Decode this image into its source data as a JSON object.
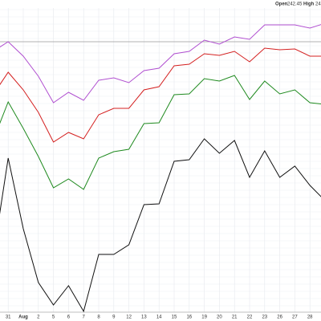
{
  "header": {
    "open_label": "Open",
    "open_value": "242.45",
    "high_label": "High",
    "high_value": "24"
  },
  "chart_data": {
    "type": "line",
    "categories": [
      null,
      "31",
      "Aug",
      "2",
      "5",
      "6",
      "7",
      "8",
      "9",
      "12",
      "13",
      "14",
      "15",
      "16",
      "19",
      "20",
      "21",
      "22",
      "23",
      "26",
      "27",
      "28",
      "29"
    ],
    "ylim": [
      0,
      400
    ],
    "series": [
      {
        "color": "#b04fd0",
        "values": [
          336,
          348,
          330,
          305,
          272,
          285,
          275,
          300,
          303,
          297,
          312,
          315,
          333,
          336,
          350,
          345,
          354,
          351,
          369,
          369,
          369,
          365,
          371
        ]
      },
      {
        "color": "#d42020",
        "values": [
          282,
          310,
          288,
          260,
          223,
          235,
          227,
          257,
          265,
          265,
          288,
          292,
          318,
          320,
          333,
          331,
          336,
          323,
          340,
          338,
          339,
          330,
          330
        ]
      },
      {
        "color": "#1f8a1f",
        "values": [
          225,
          273,
          240,
          205,
          166,
          177,
          164,
          203,
          211,
          214,
          246,
          247,
          282,
          283,
          302,
          299,
          306,
          276,
          299,
          283,
          288,
          272,
          270
        ]
      },
      {
        "color": "#111111",
        "values": [
          80,
          203,
          115,
          48,
          20,
          44,
          12,
          83,
          83,
          95,
          145,
          146,
          199,
          201,
          227,
          209,
          225,
          179,
          212,
          179,
          193,
          169,
          150
        ]
      }
    ]
  }
}
